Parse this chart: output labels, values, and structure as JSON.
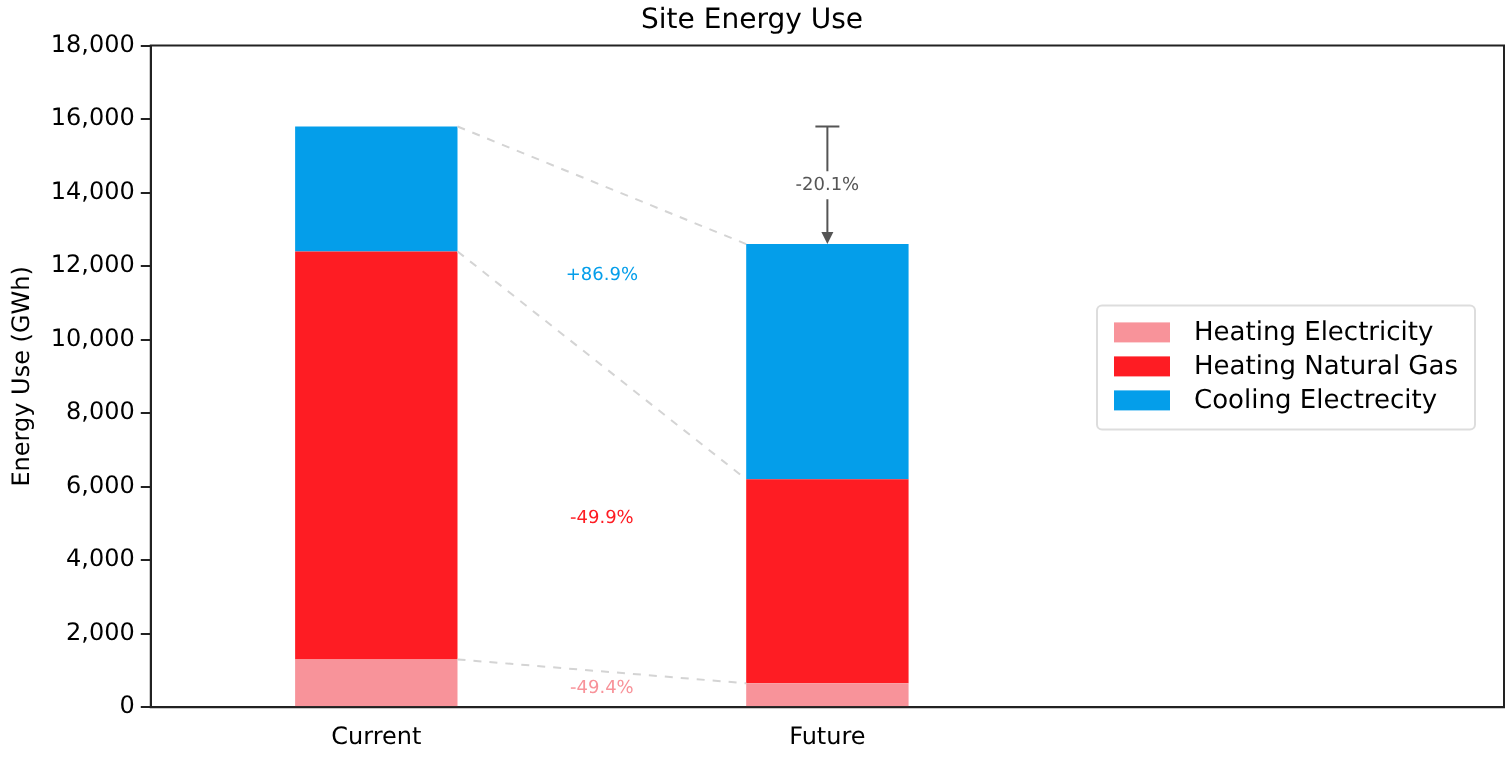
{
  "chart_data": {
    "type": "bar",
    "title": "Site Energy Use",
    "ylabel": "Energy Use (GWh)",
    "categories": [
      "Current",
      "Future",
      null
    ],
    "stacked": true,
    "series": [
      {
        "name": "Heating Electricity",
        "color": "#f8939a",
        "values": [
          1300,
          650,
          null
        ]
      },
      {
        "name": "Heating Natural Gas",
        "color": "#fe1c23",
        "values": [
          11100,
          5550,
          null
        ]
      },
      {
        "name": "Cooling Electrecity",
        "color": "#049eea",
        "values": [
          3400,
          6400,
          null
        ]
      }
    ],
    "ylim": [
      0,
      18000
    ],
    "yticks": [
      0,
      {
        "value": 2000,
        "label": "2,000"
      },
      {
        "value": 4000,
        "label": "4,000"
      },
      {
        "value": 6000,
        "label": "6,000"
      },
      {
        "value": 8000,
        "label": "8,000"
      },
      {
        "value": 10000,
        "label": "10,000"
      },
      {
        "value": 12000,
        "label": "12,000"
      },
      {
        "value": 14000,
        "label": "14,000"
      },
      {
        "value": 16000,
        "label": "16,000"
      },
      {
        "value": 18000,
        "label": "18,000"
      }
    ],
    "grid": false,
    "legend": "right",
    "annotations": [
      "-49.4%",
      "-49.9%",
      "+86.9%",
      {
        "text": "-20.1%",
        "x": "Future",
        "y": 12600
      }
    ]
  }
}
